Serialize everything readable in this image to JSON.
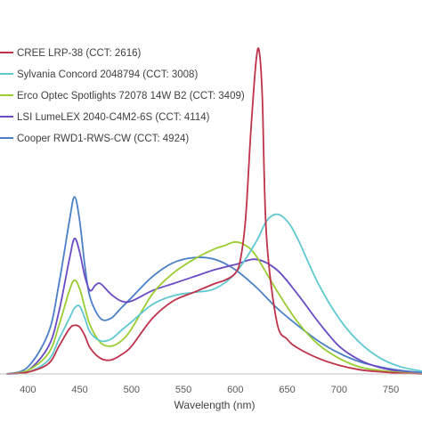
{
  "chart_data": {
    "type": "line",
    "title": "",
    "xlabel": "Wavelength (nm)",
    "ylabel": "",
    "xlim": [
      380,
      780
    ],
    "ylim": [
      0,
      1.0
    ],
    "x_ticks": [
      "400",
      "450",
      "500",
      "550",
      "600",
      "650",
      "700",
      "750"
    ],
    "x_tick_values": [
      400,
      450,
      500,
      550,
      600,
      650,
      700,
      750
    ],
    "grid": false,
    "legend_position": "top-left",
    "series": [
      {
        "name": "CREE LRP-38 (CCT: 2616)",
        "color": "#c0314a",
        "x": [
          380,
          400,
          420,
          430,
          440,
          445,
          450,
          455,
          460,
          470,
          480,
          490,
          500,
          520,
          540,
          560,
          580,
          590,
          600,
          605,
          610,
          615,
          620,
          623,
          626,
          630,
          640,
          650,
          660,
          680,
          700,
          720,
          740,
          760,
          780
        ],
        "y": [
          0,
          0.005,
          0.03,
          0.08,
          0.13,
          0.14,
          0.135,
          0.11,
          0.075,
          0.045,
          0.04,
          0.055,
          0.08,
          0.16,
          0.21,
          0.235,
          0.26,
          0.27,
          0.29,
          0.33,
          0.45,
          0.7,
          0.9,
          0.93,
          0.8,
          0.4,
          0.15,
          0.1,
          0.075,
          0.045,
          0.025,
          0.012,
          0.006,
          0.002,
          0
        ]
      },
      {
        "name": "Sylvania Concord 2048794 (CCT: 3008)",
        "color": "#5ec8d0",
        "x": [
          380,
          400,
          420,
          430,
          440,
          445,
          450,
          455,
          460,
          470,
          480,
          490,
          500,
          520,
          540,
          560,
          580,
          600,
          620,
          630,
          640,
          650,
          660,
          680,
          700,
          720,
          740,
          760,
          780
        ],
        "y": [
          0,
          0.005,
          0.04,
          0.1,
          0.16,
          0.19,
          0.195,
          0.16,
          0.12,
          0.095,
          0.1,
          0.125,
          0.15,
          0.2,
          0.225,
          0.235,
          0.245,
          0.29,
          0.38,
          0.44,
          0.46,
          0.44,
          0.39,
          0.26,
          0.16,
          0.09,
          0.045,
          0.02,
          0.008
        ]
      },
      {
        "name": "Erco Optec Spotlights 72078 14W B2 (CCT: 3409)",
        "color": "#9acd32",
        "x": [
          380,
          400,
          420,
          430,
          440,
          445,
          450,
          455,
          460,
          470,
          480,
          490,
          500,
          520,
          540,
          560,
          580,
          590,
          600,
          610,
          620,
          640,
          660,
          680,
          700,
          720,
          740,
          760,
          780
        ],
        "y": [
          0,
          0.01,
          0.06,
          0.14,
          0.24,
          0.27,
          0.245,
          0.19,
          0.14,
          0.09,
          0.08,
          0.095,
          0.13,
          0.23,
          0.29,
          0.33,
          0.36,
          0.37,
          0.38,
          0.37,
          0.34,
          0.24,
          0.15,
          0.085,
          0.045,
          0.02,
          0.01,
          0.004,
          0
        ]
      },
      {
        "name": "LSI LumeLEX 2040-C4M2-6S (CCT: 4114)",
        "color": "#6a4bc4",
        "x": [
          380,
          400,
          420,
          430,
          440,
          445,
          450,
          455,
          460,
          465,
          470,
          480,
          490,
          500,
          520,
          540,
          560,
          580,
          600,
          620,
          640,
          660,
          680,
          700,
          720,
          740,
          760,
          780
        ],
        "y": [
          0,
          0.01,
          0.08,
          0.18,
          0.33,
          0.39,
          0.35,
          0.28,
          0.24,
          0.255,
          0.26,
          0.23,
          0.21,
          0.21,
          0.24,
          0.26,
          0.28,
          0.3,
          0.315,
          0.33,
          0.3,
          0.23,
          0.15,
          0.08,
          0.04,
          0.018,
          0.007,
          0
        ]
      },
      {
        "name": "Cooper RWD1-RWS-CW (CCT: 4924)",
        "color": "#4a7fc8",
        "x": [
          380,
          400,
          420,
          430,
          440,
          445,
          450,
          455,
          460,
          470,
          480,
          490,
          500,
          520,
          540,
          560,
          580,
          600,
          620,
          640,
          660,
          680,
          700,
          720,
          740,
          760,
          780
        ],
        "y": [
          0,
          0.02,
          0.12,
          0.26,
          0.44,
          0.51,
          0.44,
          0.31,
          0.22,
          0.16,
          0.16,
          0.19,
          0.22,
          0.28,
          0.32,
          0.335,
          0.33,
          0.3,
          0.25,
          0.19,
          0.14,
          0.095,
          0.06,
          0.035,
          0.02,
          0.01,
          0.004
        ]
      }
    ]
  }
}
